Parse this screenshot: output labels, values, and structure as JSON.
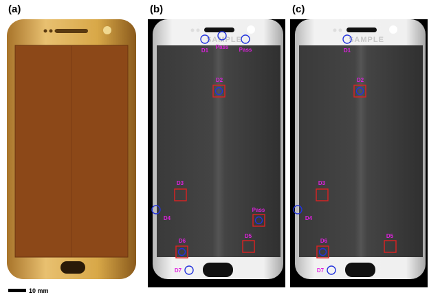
{
  "panels": [
    {
      "label": "(a)"
    },
    {
      "label": "(b)",
      "watermark": "SAMPLE",
      "annotations": [
        "D1",
        "Pass",
        "Pass",
        "D2",
        "D3",
        "D4",
        "Pass",
        "D5",
        "D6",
        "D7"
      ]
    },
    {
      "label": "(c)",
      "watermark": "SAMPLE",
      "annotations": [
        "D1",
        "D2",
        "D3",
        "D4",
        "D5",
        "D6",
        "D7"
      ]
    }
  ],
  "scale_bar": "10 mm"
}
